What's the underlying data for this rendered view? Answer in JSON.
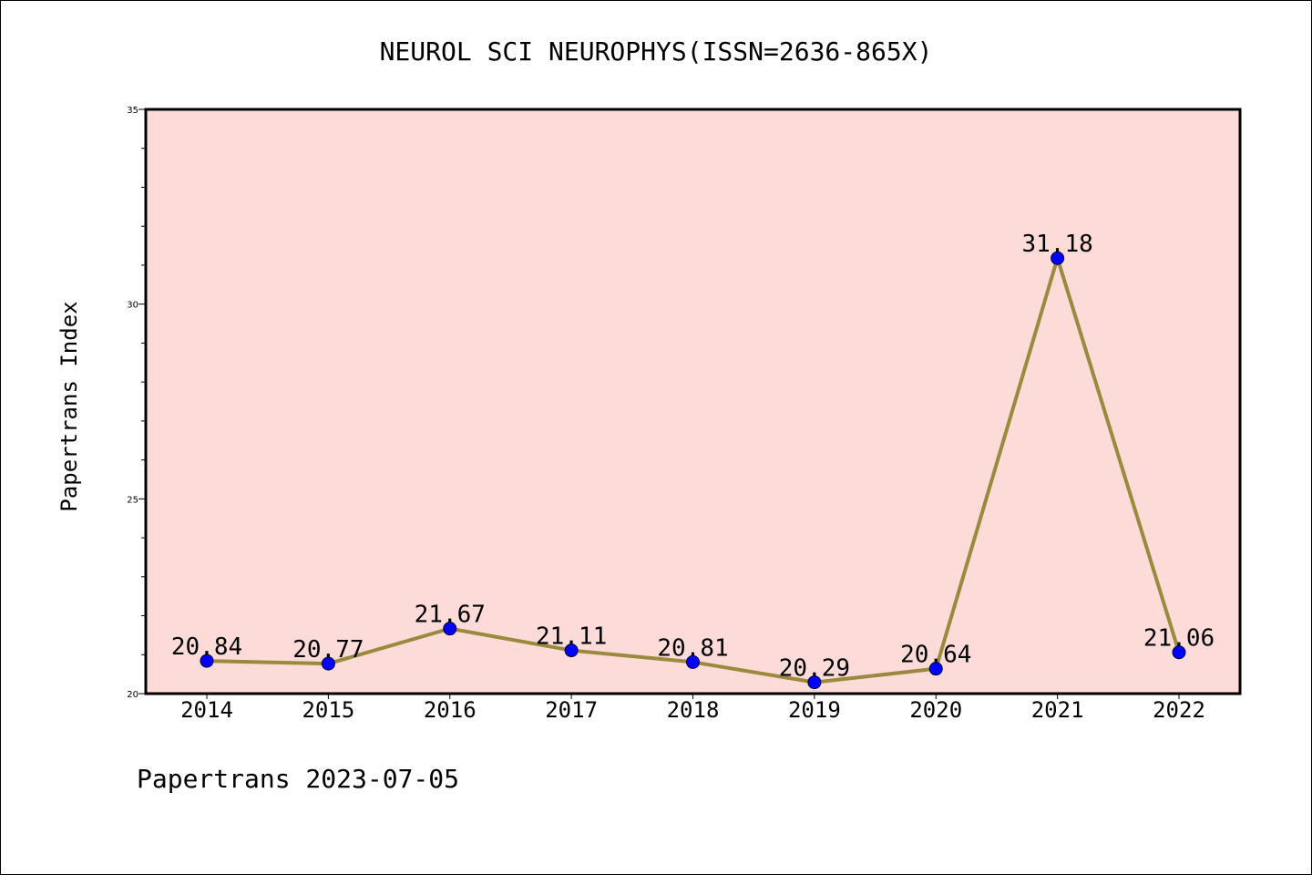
{
  "chart_data": {
    "type": "line",
    "title": "NEUROL SCI NEUROPHYS(ISSN=2636-865X)",
    "xlabel": "",
    "ylabel": "Papertrans Index",
    "x": [
      "2014",
      "2015",
      "2016",
      "2017",
      "2018",
      "2019",
      "2020",
      "2021",
      "2022"
    ],
    "values": [
      20.84,
      20.77,
      21.67,
      21.11,
      20.81,
      20.29,
      20.64,
      31.18,
      21.06
    ],
    "data_labels": [
      "20.84",
      "20.77",
      "21.67",
      "21.11",
      "20.81",
      "20.29",
      "20.64",
      "31.18",
      "21.06"
    ],
    "ylim": [
      20,
      35
    ],
    "yticks": [
      "20",
      "25",
      "30",
      "35"
    ],
    "grid": false,
    "legend": "none"
  },
  "footer": {
    "text": "Papertrans 2023-07-05"
  },
  "colors": {
    "plot_background": "#fddbd8",
    "line": "#9a8a3e",
    "marker": "#0000ff"
  }
}
